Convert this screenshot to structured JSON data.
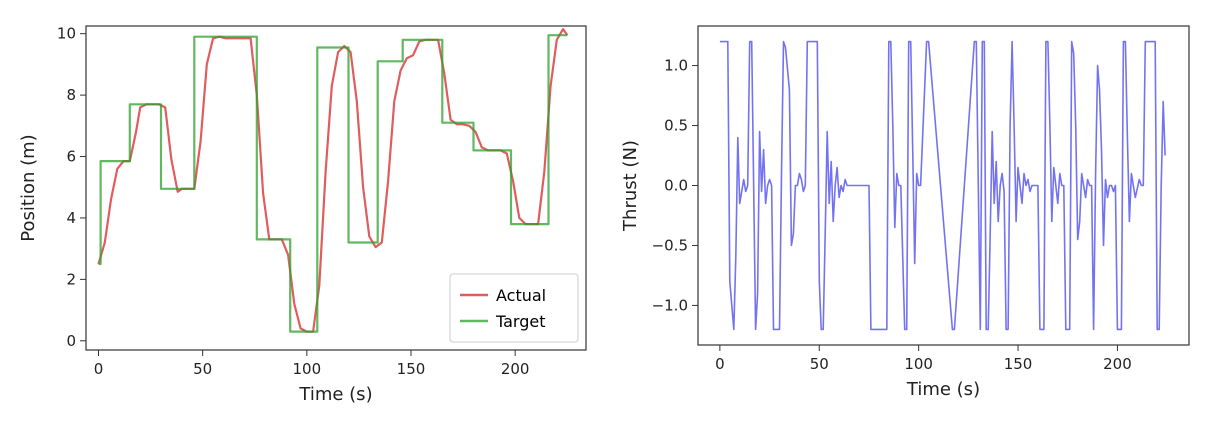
{
  "chart_data": [
    {
      "type": "line",
      "title": "",
      "xlabel": "Time (s)",
      "ylabel": "Position (m)",
      "xlim": [
        -6,
        234
      ],
      "ylim": [
        -0.3,
        10.25
      ],
      "xticks": [
        0,
        50,
        100,
        150,
        200
      ],
      "yticks": [
        0,
        2,
        4,
        6,
        8,
        10
      ],
      "grid": false,
      "legend": "bottom-right",
      "series": [
        {
          "name": "Actual",
          "color": "#d62728",
          "x": [
            0,
            3,
            6,
            9,
            12,
            15,
            18,
            20,
            23,
            26,
            29,
            32,
            35,
            38,
            40,
            43,
            46,
            49,
            52,
            55,
            58,
            61,
            64,
            67,
            70,
            73,
            76,
            79,
            82,
            85,
            88,
            91,
            94,
            97,
            100,
            103,
            106,
            109,
            112,
            115,
            118,
            121,
            124,
            127,
            130,
            133,
            136,
            139,
            142,
            145,
            148,
            151,
            154,
            157,
            160,
            163,
            166,
            169,
            172,
            175,
            178,
            181,
            184,
            187,
            190,
            193,
            196,
            199,
            202,
            205,
            208,
            211,
            214,
            217,
            220,
            223,
            225
          ],
          "y": [
            2.5,
            3.2,
            4.6,
            5.6,
            5.85,
            5.85,
            6.8,
            7.6,
            7.7,
            7.7,
            7.7,
            7.6,
            5.9,
            4.85,
            4.95,
            4.95,
            4.95,
            6.5,
            9.0,
            9.85,
            9.9,
            9.85,
            9.85,
            9.85,
            9.85,
            9.85,
            8.0,
            4.8,
            3.3,
            3.3,
            3.3,
            2.8,
            1.2,
            0.4,
            0.3,
            0.3,
            1.8,
            5.5,
            8.3,
            9.4,
            9.6,
            9.4,
            7.8,
            5.0,
            3.4,
            3.05,
            3.2,
            5.2,
            7.8,
            8.8,
            9.2,
            9.3,
            9.75,
            9.8,
            9.8,
            9.8,
            8.7,
            7.2,
            7.05,
            7.05,
            7.0,
            6.8,
            6.3,
            6.2,
            6.2,
            6.2,
            6.1,
            5.2,
            4.0,
            3.8,
            3.8,
            3.8,
            5.5,
            8.3,
            9.8,
            10.15,
            9.95
          ]
        },
        {
          "name": "Target",
          "color": "#2ca02c",
          "x": [
            0,
            1,
            1,
            15,
            15,
            30,
            30,
            46,
            46,
            76,
            76,
            92,
            92,
            105,
            105,
            120,
            120,
            134,
            134,
            146,
            146,
            165,
            165,
            180,
            180,
            198,
            198,
            216,
            216,
            225
          ],
          "y": [
            2.5,
            2.5,
            5.85,
            5.85,
            7.7,
            7.7,
            4.95,
            4.95,
            9.9,
            9.9,
            3.3,
            3.3,
            0.3,
            0.3,
            9.55,
            9.55,
            3.2,
            3.2,
            9.1,
            9.1,
            9.8,
            9.8,
            7.1,
            7.1,
            6.2,
            6.2,
            3.8,
            3.8,
            9.95,
            9.95
          ]
        }
      ]
    },
    {
      "type": "line",
      "title": "",
      "xlabel": "Time (s)",
      "ylabel": "Thrust (N)",
      "xlim": [
        -11,
        236
      ],
      "ylim": [
        -1.33,
        1.33
      ],
      "xticks": [
        0,
        50,
        100,
        150,
        200
      ],
      "yticks": [
        -1.0,
        -0.5,
        0.0,
        0.5,
        1.0
      ],
      "grid": false,
      "series": [
        {
          "color": "#5b5bf0",
          "x": [
            0,
            4,
            5,
            7,
            8,
            9,
            10,
            11,
            12,
            13,
            14,
            15,
            16,
            18,
            19,
            20,
            21,
            22,
            23,
            24,
            25,
            26,
            27,
            28,
            29,
            30,
            31,
            32,
            33,
            35,
            36,
            37,
            38,
            39,
            40,
            41,
            42,
            43,
            44,
            45,
            49,
            50,
            51,
            52,
            53,
            54,
            55,
            56,
            57,
            58,
            59,
            60,
            61,
            62,
            63,
            64,
            65,
            66,
            67,
            68,
            69,
            70,
            71,
            72,
            73,
            74,
            75,
            76,
            84,
            85,
            86,
            87,
            88,
            89,
            90,
            91,
            93,
            94,
            95,
            96,
            97,
            98,
            99,
            100,
            101,
            104,
            105,
            117,
            118,
            128,
            129,
            131,
            132,
            133,
            134,
            135,
            136,
            137,
            138,
            139,
            140,
            141,
            142,
            143,
            144,
            145,
            146,
            147,
            148,
            149,
            150,
            151,
            152,
            153,
            154,
            155,
            156,
            157,
            158,
            159,
            160,
            161,
            162,
            163,
            164,
            165,
            166,
            167,
            168,
            169,
            170,
            171,
            172,
            173,
            174,
            175,
            176,
            177,
            178,
            179,
            180,
            181,
            182,
            183,
            184,
            185,
            186,
            187,
            188,
            189,
            190,
            191,
            192,
            193,
            194,
            195,
            196,
            197,
            198,
            199,
            200,
            201,
            202,
            203,
            204,
            205,
            206,
            207,
            208,
            209,
            211,
            212,
            213,
            214,
            215,
            216,
            217,
            218,
            219,
            220,
            221,
            222,
            223,
            224
          ],
          "y": [
            1.2,
            1.2,
            -0.8,
            -1.2,
            -0.6,
            0.4,
            -0.15,
            -0.05,
            0.05,
            -0.05,
            0.0,
            1.2,
            1.2,
            -1.2,
            -0.9,
            0.45,
            -0.05,
            0.3,
            -0.15,
            0.0,
            0.05,
            0.0,
            -1.2,
            -1.2,
            -1.2,
            -1.2,
            0.1,
            1.2,
            1.15,
            0.8,
            -0.5,
            -0.4,
            0.0,
            0.0,
            0.1,
            0.05,
            -0.05,
            0.0,
            1.2,
            1.2,
            1.2,
            -0.8,
            -1.2,
            -1.2,
            -0.4,
            0.45,
            -0.15,
            0.2,
            -0.3,
            0.0,
            0.15,
            -0.1,
            0.0,
            -0.05,
            0.05,
            0.0,
            0.0,
            0.0,
            0.0,
            0.0,
            0.0,
            0.0,
            0.0,
            0.0,
            0.0,
            0.0,
            0.0,
            -1.2,
            -1.2,
            1.2,
            1.2,
            0.5,
            -0.35,
            0.1,
            0.0,
            0.0,
            -1.2,
            -1.2,
            1.2,
            1.2,
            0.3,
            -0.65,
            0.1,
            0.0,
            0.0,
            1.2,
            1.2,
            -1.2,
            -1.2,
            1.2,
            1.2,
            -1.2,
            1.2,
            1.2,
            -1.2,
            -1.2,
            -0.4,
            0.45,
            -0.15,
            0.2,
            -0.3,
            0.0,
            0.1,
            -0.05,
            -1.2,
            -1.2,
            0.5,
            1.2,
            0.5,
            -0.3,
            0.15,
            0.0,
            -0.15,
            0.1,
            0.0,
            0.05,
            -0.05,
            0.0,
            0.0,
            0.0,
            0.0,
            -1.2,
            -1.2,
            -1.2,
            1.2,
            1.2,
            0.5,
            -0.3,
            0.15,
            0.0,
            -0.15,
            0.1,
            0.0,
            0.0,
            -1.2,
            -1.2,
            -1.2,
            1.2,
            1.1,
            0.5,
            -0.45,
            -0.3,
            0.1,
            0.0,
            -0.1,
            0.05,
            0.0,
            0.0,
            -1.2,
            0.1,
            1.0,
            0.8,
            0.3,
            -0.5,
            0.05,
            -0.1,
            0.0,
            0.0,
            -0.05,
            0.0,
            -1.2,
            -1.2,
            -1.2,
            1.2,
            1.2,
            0.4,
            -0.3,
            0.1,
            0.0,
            -0.1,
            0.05,
            0.0,
            0.0,
            1.2,
            1.2,
            1.2,
            1.2,
            1.2,
            1.2,
            -1.2,
            -1.2,
            0.0,
            0.7,
            0.25
          ]
        }
      ]
    }
  ]
}
